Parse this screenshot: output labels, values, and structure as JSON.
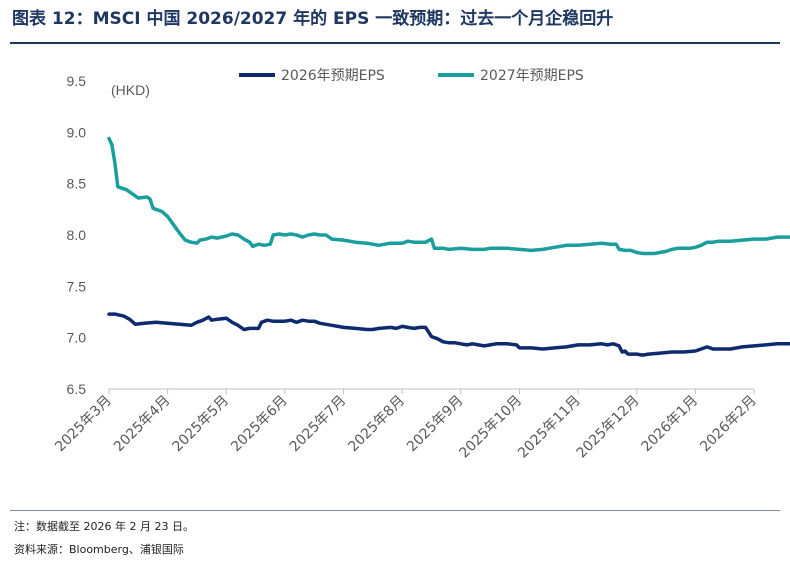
{
  "header": {
    "title": "图表 12：MSCI 中国 2026/2027 年的 EPS 一致预期：过去一个月企稳回升"
  },
  "footer": {
    "note": "注：数据截至 2026 年 2 月 23 日。",
    "source": "资料来源：Bloomberg、浦银国际"
  },
  "colors": {
    "title": "#1f3763",
    "series_2026": "#0d2b6e",
    "series_2027": "#1a9e9e"
  },
  "chart_data": {
    "type": "line",
    "unit_label": "(HKD)",
    "ylim": [
      6.5,
      9.5
    ],
    "yticks": [
      "9.5",
      "9.0",
      "8.5",
      "8.0",
      "7.5",
      "7.0",
      "6.5"
    ],
    "x_tick_labels": [
      "2025年3月",
      "2025年4月",
      "2025年5月",
      "2025年6月",
      "2025年7月",
      "2025年8月",
      "2025年9月",
      "2025年10月",
      "2025年11月",
      "2025年12月",
      "2026年1月",
      "2026年2月"
    ],
    "grid": false,
    "legend_position": "top-center",
    "series": [
      {
        "name": "2026年预期EPS",
        "color": "#0d2b6e",
        "points": [
          [
            0.0,
            7.23
          ],
          [
            0.1,
            7.23
          ],
          [
            0.25,
            7.21
          ],
          [
            0.35,
            7.18
          ],
          [
            0.45,
            7.13
          ],
          [
            0.6,
            7.14
          ],
          [
            0.8,
            7.15
          ],
          [
            1.0,
            7.14
          ],
          [
            1.2,
            7.13
          ],
          [
            1.4,
            7.12
          ],
          [
            1.5,
            7.15
          ],
          [
            1.6,
            7.17
          ],
          [
            1.7,
            7.2
          ],
          [
            1.75,
            7.17
          ],
          [
            1.85,
            7.18
          ],
          [
            2.0,
            7.19
          ],
          [
            2.1,
            7.15
          ],
          [
            2.2,
            7.12
          ],
          [
            2.3,
            7.08
          ],
          [
            2.4,
            7.09
          ],
          [
            2.55,
            7.09
          ],
          [
            2.6,
            7.15
          ],
          [
            2.7,
            7.17
          ],
          [
            2.8,
            7.16
          ],
          [
            3.0,
            7.16
          ],
          [
            3.1,
            7.17
          ],
          [
            3.2,
            7.15
          ],
          [
            3.3,
            7.17
          ],
          [
            3.4,
            7.16
          ],
          [
            3.5,
            7.16
          ],
          [
            3.6,
            7.14
          ],
          [
            3.8,
            7.12
          ],
          [
            4.0,
            7.1
          ],
          [
            4.2,
            7.09
          ],
          [
            4.4,
            7.08
          ],
          [
            4.5,
            7.08
          ],
          [
            4.6,
            7.09
          ],
          [
            4.8,
            7.1
          ],
          [
            4.9,
            7.09
          ],
          [
            5.0,
            7.11
          ],
          [
            5.1,
            7.1
          ],
          [
            5.2,
            7.09
          ],
          [
            5.3,
            7.1
          ],
          [
            5.4,
            7.1
          ],
          [
            5.5,
            7.01
          ],
          [
            5.6,
            6.99
          ],
          [
            5.7,
            6.96
          ],
          [
            5.8,
            6.95
          ],
          [
            5.9,
            6.95
          ],
          [
            6.0,
            6.94
          ],
          [
            6.1,
            6.93
          ],
          [
            6.2,
            6.94
          ],
          [
            6.3,
            6.93
          ],
          [
            6.4,
            6.92
          ],
          [
            6.5,
            6.93
          ],
          [
            6.6,
            6.94
          ],
          [
            6.8,
            6.94
          ],
          [
            6.95,
            6.93
          ],
          [
            7.0,
            6.9
          ],
          [
            7.2,
            6.9
          ],
          [
            7.4,
            6.89
          ],
          [
            7.6,
            6.9
          ],
          [
            7.8,
            6.91
          ],
          [
            7.9,
            6.92
          ],
          [
            8.0,
            6.93
          ],
          [
            8.2,
            6.93
          ],
          [
            8.4,
            6.94
          ],
          [
            8.5,
            6.93
          ],
          [
            8.6,
            6.94
          ],
          [
            8.7,
            6.92
          ],
          [
            8.75,
            6.86
          ],
          [
            8.8,
            6.87
          ],
          [
            8.85,
            6.84
          ],
          [
            9.0,
            6.84
          ],
          [
            9.1,
            6.83
          ],
          [
            9.2,
            6.84
          ],
          [
            9.4,
            6.85
          ],
          [
            9.6,
            6.86
          ],
          [
            9.8,
            6.86
          ],
          [
            10.0,
            6.87
          ],
          [
            10.1,
            6.89
          ],
          [
            10.2,
            6.91
          ],
          [
            10.3,
            6.89
          ],
          [
            10.4,
            6.89
          ],
          [
            10.6,
            6.89
          ],
          [
            10.8,
            6.91
          ],
          [
            11.0,
            6.92
          ],
          [
            11.2,
            6.93
          ],
          [
            11.4,
            6.94
          ],
          [
            11.6,
            6.94
          ],
          [
            11.8,
            6.94
          ]
        ]
      },
      {
        "name": "2027年预期EPS",
        "color": "#1a9e9e",
        "points": [
          [
            0.0,
            8.94
          ],
          [
            0.05,
            8.88
          ],
          [
            0.1,
            8.7
          ],
          [
            0.15,
            8.47
          ],
          [
            0.3,
            8.44
          ],
          [
            0.4,
            8.4
          ],
          [
            0.5,
            8.36
          ],
          [
            0.65,
            8.37
          ],
          [
            0.7,
            8.35
          ],
          [
            0.75,
            8.26
          ],
          [
            0.9,
            8.23
          ],
          [
            1.0,
            8.18
          ],
          [
            1.1,
            8.1
          ],
          [
            1.2,
            8.02
          ],
          [
            1.3,
            7.95
          ],
          [
            1.4,
            7.93
          ],
          [
            1.5,
            7.92
          ],
          [
            1.55,
            7.95
          ],
          [
            1.65,
            7.96
          ],
          [
            1.75,
            7.98
          ],
          [
            1.85,
            7.97
          ],
          [
            2.0,
            7.99
          ],
          [
            2.1,
            8.01
          ],
          [
            2.2,
            8.0
          ],
          [
            2.3,
            7.96
          ],
          [
            2.4,
            7.93
          ],
          [
            2.45,
            7.89
          ],
          [
            2.55,
            7.91
          ],
          [
            2.65,
            7.9
          ],
          [
            2.75,
            7.91
          ],
          [
            2.8,
            8.0
          ],
          [
            2.9,
            8.01
          ],
          [
            3.0,
            8.0
          ],
          [
            3.1,
            8.01
          ],
          [
            3.2,
            8.0
          ],
          [
            3.3,
            7.98
          ],
          [
            3.4,
            8.0
          ],
          [
            3.5,
            8.01
          ],
          [
            3.6,
            8.0
          ],
          [
            3.7,
            8.0
          ],
          [
            3.8,
            7.96
          ],
          [
            4.0,
            7.95
          ],
          [
            4.2,
            7.93
          ],
          [
            4.4,
            7.92
          ],
          [
            4.6,
            7.9
          ],
          [
            4.8,
            7.92
          ],
          [
            5.0,
            7.92
          ],
          [
            5.1,
            7.94
          ],
          [
            5.2,
            7.93
          ],
          [
            5.4,
            7.93
          ],
          [
            5.5,
            7.96
          ],
          [
            5.55,
            7.87
          ],
          [
            5.7,
            7.87
          ],
          [
            5.8,
            7.86
          ],
          [
            6.0,
            7.87
          ],
          [
            6.2,
            7.86
          ],
          [
            6.4,
            7.86
          ],
          [
            6.5,
            7.87
          ],
          [
            6.6,
            7.87
          ],
          [
            6.8,
            7.87
          ],
          [
            7.0,
            7.86
          ],
          [
            7.2,
            7.85
          ],
          [
            7.4,
            7.86
          ],
          [
            7.6,
            7.88
          ],
          [
            7.8,
            7.9
          ],
          [
            8.0,
            7.9
          ],
          [
            8.2,
            7.91
          ],
          [
            8.4,
            7.92
          ],
          [
            8.55,
            7.91
          ],
          [
            8.65,
            7.91
          ],
          [
            8.7,
            7.86
          ],
          [
            8.8,
            7.85
          ],
          [
            8.9,
            7.85
          ],
          [
            9.0,
            7.83
          ],
          [
            9.1,
            7.82
          ],
          [
            9.3,
            7.82
          ],
          [
            9.5,
            7.84
          ],
          [
            9.6,
            7.86
          ],
          [
            9.7,
            7.87
          ],
          [
            9.9,
            7.87
          ],
          [
            10.0,
            7.88
          ],
          [
            10.1,
            7.9
          ],
          [
            10.2,
            7.93
          ],
          [
            10.3,
            7.93
          ],
          [
            10.4,
            7.94
          ],
          [
            10.6,
            7.94
          ],
          [
            10.8,
            7.95
          ],
          [
            11.0,
            7.96
          ],
          [
            11.2,
            7.96
          ],
          [
            11.3,
            7.97
          ],
          [
            11.4,
            7.98
          ],
          [
            11.6,
            7.98
          ],
          [
            11.8,
            7.98
          ]
        ]
      }
    ]
  }
}
